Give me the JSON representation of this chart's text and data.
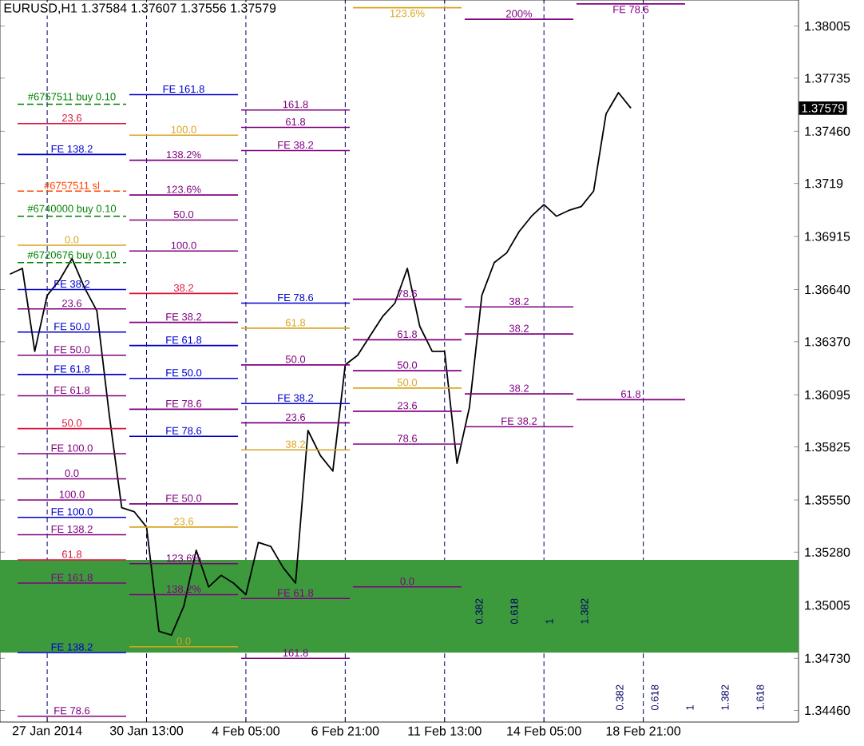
{
  "chart_data": {
    "type": "line",
    "title": "EURUSD,H1  1.37584 1.37607 1.37556 1.37579",
    "categories": [
      null,
      null,
      null,
      "27 Jan 2014",
      null,
      null,
      null,
      null,
      null,
      null,
      null,
      "30 Jan 13:00",
      null,
      null,
      null,
      null,
      null,
      null,
      null,
      "4 Feb 05:00",
      null,
      null,
      null,
      null,
      null,
      null,
      null,
      "6 Feb 21:00",
      null,
      null,
      null,
      null,
      null,
      null,
      null,
      "11 Feb 13:00",
      null,
      null,
      null,
      null,
      null,
      null,
      null,
      "14 Feb 05:00",
      null,
      null,
      null,
      null,
      null,
      null,
      null,
      "18 Feb 21:00",
      null,
      null,
      null,
      null,
      null,
      null,
      null,
      null,
      null,
      null,
      null,
      null
    ],
    "series": [
      {
        "color": "#000000",
        "values": [
          1.3672,
          1.3675,
          1.3632,
          1.3661,
          1.3669,
          1.368,
          1.3665,
          1.3653,
          1.3599,
          1.3551,
          1.3549,
          1.3541,
          1.3487,
          1.3485,
          1.35,
          1.3529,
          1.351,
          1.3516,
          1.3512,
          1.3506,
          1.3533,
          1.3531,
          1.352,
          1.3512,
          1.3591,
          1.3578,
          1.357,
          1.3625,
          1.363,
          1.364,
          1.365,
          1.3657,
          1.3675,
          1.3645,
          1.3632,
          1.3632,
          1.3574,
          1.3603,
          1.3661,
          1.3678,
          1.3683,
          1.3694,
          1.3702,
          1.3708,
          1.3702,
          1.3705,
          1.3707,
          1.3715,
          1.3755,
          1.3766,
          1.3758,
          null,
          null,
          null,
          null,
          null,
          null,
          null,
          null,
          null,
          null,
          null,
          null,
          null
        ]
      }
    ],
    "ylim": [
      1.344,
      1.3814
    ],
    "yticks": [
      1.38005,
      1.37735,
      {
        "value": 1.3746,
        "label": "1.37460"
      },
      1.3719,
      1.36915,
      {
        "value": 1.3664,
        "label": "1.36640"
      },
      {
        "value": 1.3637,
        "label": "1.36370"
      },
      1.36095,
      1.35825,
      {
        "value": 1.3555,
        "label": "1.35550"
      },
      {
        "value": 1.3528,
        "label": "1.35280"
      },
      1.35005,
      {
        "value": 1.3473,
        "label": "1.34730"
      },
      {
        "value": 1.3446,
        "label": "1.34460"
      }
    ],
    "grid": "x",
    "bands": [
      {
        "axis": "y",
        "from": 1.3476,
        "to": 1.3524,
        "color": "#3c9a3c"
      }
    ],
    "ref_lines": [
      {
        "axis": "y",
        "value": 1.376,
        "color": "#008000",
        "line_style": "dashed"
      },
      {
        "axis": "y",
        "value": 1.375,
        "color": "#dc143c"
      },
      {
        "axis": "y",
        "value": 1.3715,
        "color": "#ff4500",
        "line_style": "dashed"
      },
      {
        "axis": "y",
        "value": 1.3702,
        "color": "#008000",
        "line_style": "dashed"
      },
      {
        "axis": "y",
        "value": 1.3678,
        "color": "#008000",
        "line_style": "dashed"
      },
      {
        "axis": "y",
        "value": 1.3664,
        "color": "#0000cd"
      },
      {
        "axis": "y",
        "value": 1.3662,
        "color": "#dc143c"
      },
      {
        "axis": "y",
        "value": 1.3642,
        "color": "#0000cd"
      },
      {
        "axis": "y",
        "value": 1.362,
        "color": "#0000cd"
      },
      {
        "axis": "y",
        "value": 1.3592,
        "color": "#dc143c"
      },
      {
        "axis": "y",
        "value": 1.3588,
        "color": "#0000cd"
      },
      {
        "axis": "y",
        "value": 1.3546,
        "color": "#0000cd"
      },
      {
        "axis": "y",
        "value": 1.3524,
        "color": "#dc143c"
      },
      {
        "axis": "y",
        "value": 1.3476,
        "color": "#0000cd"
      },
      {
        "axis": "y",
        "value": 1.3647,
        "color": "#800080"
      },
      {
        "axis": "y",
        "value": 1.363,
        "color": "#800080"
      },
      {
        "axis": "y",
        "value": 1.3609,
        "color": "#800080"
      },
      {
        "axis": "y",
        "value": 1.3602,
        "color": "#800080"
      },
      {
        "axis": "y",
        "value": 1.3579,
        "color": "#800080"
      },
      {
        "axis": "y",
        "value": 1.3537,
        "color": "#800080"
      },
      {
        "axis": "y",
        "value": 1.3512,
        "color": "#800080"
      },
      {
        "axis": "y",
        "value": 1.3765,
        "color": "#0000cd"
      },
      {
        "axis": "y",
        "value": 1.3734,
        "color": "#0000cd"
      },
      {
        "axis": "y",
        "value": 1.3744,
        "color": "#daa520"
      },
      {
        "axis": "y",
        "value": 1.3657,
        "color": "#0000cd"
      },
      {
        "axis": "y",
        "value": 1.3635,
        "color": "#0000cd"
      },
      {
        "axis": "y",
        "value": 1.3618,
        "color": "#0000cd"
      },
      {
        "axis": "y",
        "value": 1.3605,
        "color": "#0000cd"
      },
      {
        "axis": "y",
        "value": 1.381,
        "color": "#daa520"
      },
      {
        "axis": "y",
        "value": 1.3687,
        "color": "#daa520"
      },
      {
        "axis": "y",
        "value": 1.3644,
        "color": "#daa520"
      },
      {
        "axis": "y",
        "value": 1.3613,
        "color": "#daa520"
      },
      {
        "axis": "y",
        "value": 1.3581,
        "color": "#daa520"
      },
      {
        "axis": "y",
        "value": 1.3541,
        "color": "#daa520"
      },
      {
        "axis": "y",
        "value": 1.3479,
        "color": "#daa520"
      },
      {
        "axis": "y",
        "value": 1.3804,
        "color": "#800080"
      },
      {
        "axis": "y",
        "value": 1.3757,
        "color": "#800080"
      },
      {
        "axis": "y",
        "value": 1.3731,
        "color": "#800080"
      },
      {
        "axis": "y",
        "value": 1.3713,
        "color": "#800080"
      },
      {
        "axis": "y",
        "value": 1.3684,
        "color": "#800080"
      },
      {
        "axis": "y",
        "value": 1.3659,
        "color": "#800080"
      },
      {
        "axis": "y",
        "value": 1.3638,
        "color": "#800080"
      },
      {
        "axis": "y",
        "value": 1.3625,
        "color": "#800080"
      },
      {
        "axis": "y",
        "value": 1.361,
        "color": "#800080"
      },
      {
        "axis": "y",
        "value": 1.3595,
        "color": "#800080"
      },
      {
        "axis": "y",
        "value": 1.3566,
        "color": "#800080"
      },
      {
        "axis": "y",
        "value": 1.3654,
        "color": "#800080"
      },
      {
        "axis": "y",
        "value": 1.3641,
        "color": "#800080"
      },
      {
        "axis": "y",
        "value": 1.3622,
        "color": "#800080"
      },
      {
        "axis": "y",
        "value": 1.3607,
        "color": "#800080"
      },
      {
        "axis": "y",
        "value": 1.3584,
        "color": "#800080"
      },
      {
        "axis": "y",
        "value": 1.3555,
        "color": "#800080"
      },
      {
        "axis": "y",
        "value": 1.3522,
        "color": "#800080"
      },
      {
        "axis": "y",
        "value": 1.3506,
        "color": "#800080"
      },
      {
        "axis": "y",
        "value": 1.3473,
        "color": "#800080"
      },
      {
        "axis": "y",
        "value": 1.3812,
        "color": "#800080"
      },
      {
        "axis": "y",
        "value": 1.3748,
        "color": "#800080"
      },
      {
        "axis": "y",
        "value": 1.3736,
        "color": "#800080"
      },
      {
        "axis": "y",
        "value": 1.37,
        "color": "#800080"
      },
      {
        "axis": "y",
        "value": 1.3655,
        "color": "#800080"
      },
      {
        "axis": "y",
        "value": 1.3601,
        "color": "#800080"
      },
      {
        "axis": "y",
        "value": 1.3593,
        "color": "#800080"
      },
      {
        "axis": "y",
        "value": 1.3553,
        "color": "#800080"
      },
      {
        "axis": "y",
        "value": 1.3504,
        "color": "#800080"
      },
      {
        "axis": "y",
        "value": 1.351,
        "color": "#800080"
      },
      {
        "axis": "y",
        "value": 1.3443,
        "color": "#800080"
      }
    ],
    "annotations": [
      "1.37579",
      {
        "text": "#6757511 buy 0.10",
        "y": 1.376
      },
      {
        "text": "23.6",
        "y": 1.375
      },
      {
        "text": "#6757511 sl",
        "y": 1.3715
      },
      {
        "text": "#6740000 buy 0.10",
        "y": 1.3702
      },
      {
        "text": "#6720676 buy 0.10",
        "y": 1.3678
      },
      {
        "text": "FE 38.2",
        "y": 1.3664
      },
      {
        "text": "38.2",
        "y": 1.3662
      },
      {
        "text": "FE 50.0",
        "y": 1.3642
      },
      {
        "text": "FE 61.8",
        "y": 1.362
      },
      {
        "text": "50.0",
        "y": 1.3592
      },
      {
        "text": "FE 78.6",
        "y": 1.3588
      },
      {
        "text": "FE 100.0",
        "y": 1.3546
      },
      {
        "text": "61.8",
        "y": 1.3524
      },
      {
        "text": "FE 138.2",
        "y": 1.3476
      },
      {
        "text": "FE 38.2",
        "y": 1.3647
      },
      {
        "text": "FE 50.0",
        "y": 1.363
      },
      {
        "text": "FE 61.8",
        "y": 1.3609
      },
      {
        "text": "FE 78.6",
        "y": 1.3602
      },
      {
        "text": "FE 100.0",
        "y": 1.3579
      },
      {
        "text": "FE 138.2",
        "y": 1.3537
      },
      {
        "text": "FE 161.8",
        "y": 1.3512
      },
      {
        "text": "FE 161.8",
        "y": 1.3765
      },
      {
        "text": "FE 138.2",
        "y": 1.3734
      },
      {
        "text": "100.0",
        "y": 1.3744
      },
      {
        "text": "FE 78.6",
        "y": 1.3657
      },
      {
        "text": "FE 61.8",
        "y": 1.3635
      },
      {
        "text": "FE 50.0",
        "y": 1.3618
      },
      {
        "text": "FE 38.2",
        "y": 1.3605
      },
      {
        "text": "123.6%",
        "y": 1.381
      },
      {
        "text": "0.0",
        "y": 1.3687
      },
      {
        "text": "61.8",
        "y": 1.3644
      },
      {
        "text": "50.0",
        "y": 1.3613
      },
      {
        "text": "38.2",
        "y": 1.3581
      },
      {
        "text": "23.6",
        "y": 1.3541
      },
      {
        "text": "0.0",
        "y": 1.3479
      },
      {
        "text": "200%",
        "y": 1.3804
      },
      {
        "text": "161.8",
        "y": 1.3757
      },
      {
        "text": "138.2%",
        "y": 1.3731
      },
      {
        "text": "123.6%",
        "y": 1.3713
      },
      {
        "text": "100.0",
        "y": 1.3684
      },
      {
        "text": "78.6",
        "y": 1.3659
      },
      {
        "text": "61.8",
        "y": 1.3638
      },
      {
        "text": "50.0",
        "y": 1.3625
      },
      {
        "text": "38.2",
        "y": 1.361
      },
      {
        "text": "23.6",
        "y": 1.3595
      },
      {
        "text": "0.0",
        "y": 1.3566
      },
      {
        "text": "23.6",
        "y": 1.3654
      },
      {
        "text": "38.2",
        "y": 1.3641
      },
      {
        "text": "50.0",
        "y": 1.3622
      },
      {
        "text": "61.8",
        "y": 1.3607
      },
      {
        "text": "78.6",
        "y": 1.3584
      },
      {
        "text": "100.0",
        "y": 1.3555
      },
      {
        "text": "123.6%",
        "y": 1.3522
      },
      {
        "text": "138.2%",
        "y": 1.3506
      },
      {
        "text": "161.8",
        "y": 1.3473
      },
      {
        "text": "FE 78.6",
        "y": 1.3812
      },
      {
        "text": "61.8",
        "y": 1.3748
      },
      {
        "text": "FE 38.2",
        "y": 1.3736
      },
      {
        "text": "50.0",
        "y": 1.37
      },
      {
        "text": "38.2",
        "y": 1.3655
      },
      {
        "text": "23.6",
        "y": 1.3601
      },
      {
        "text": "FE 38.2",
        "y": 1.3593
      },
      {
        "text": "FE 50.0",
        "y": 1.3553
      },
      {
        "text": "FE 61.8",
        "y": 1.3504
      },
      {
        "text": "0.0",
        "y": 1.351
      },
      {
        "text": "FE 78.6",
        "y": 1.3443
      },
      "0.382",
      "0.618",
      "1",
      "1.382",
      "0.382",
      "0.618",
      "1",
      "1.382",
      "1.618"
    ]
  }
}
